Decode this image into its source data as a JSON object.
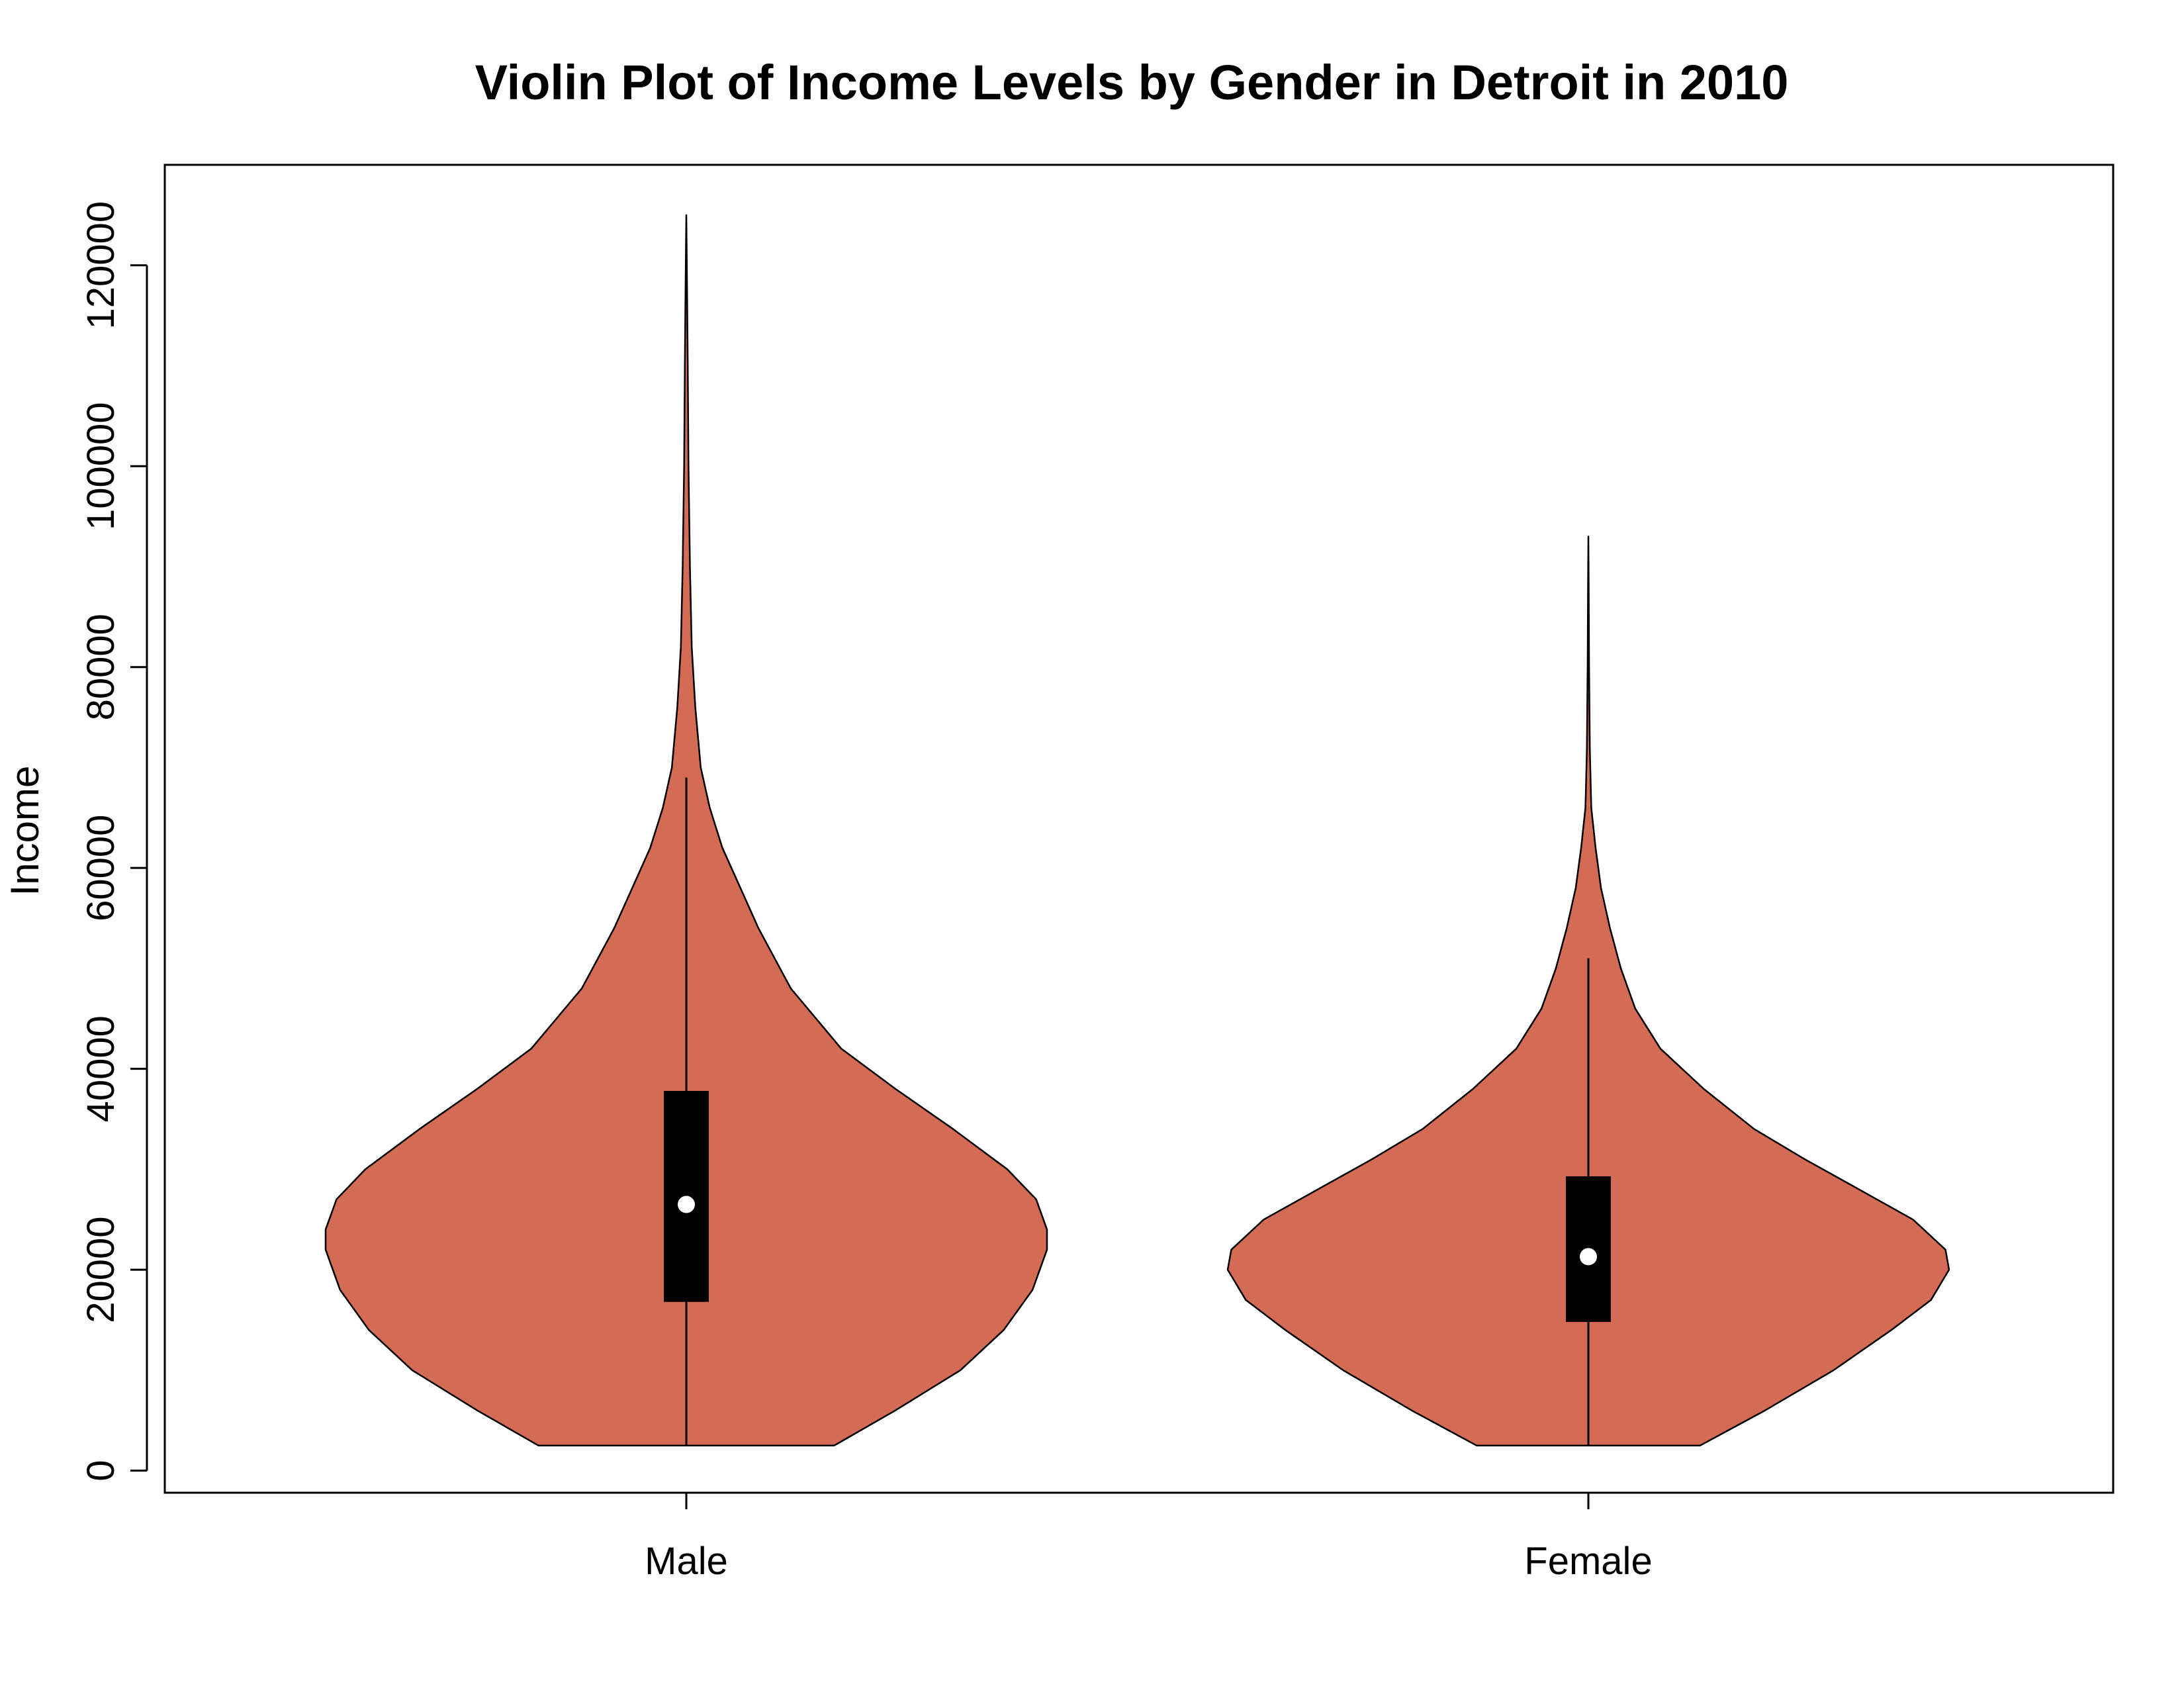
{
  "chart_data": {
    "type": "violin",
    "title": "Violin Plot of Income Levels by Gender in Detroit in 2010",
    "xlabel": "",
    "ylabel": "Income",
    "ylim": [
      -2200,
      130000
    ],
    "y_ticks": [
      0,
      20000,
      40000,
      60000,
      80000,
      100000,
      120000
    ],
    "y_tick_labels": [
      "0",
      "20000",
      "40000",
      "60000",
      "80000",
      "100000",
      "120000"
    ],
    "categories": [
      "Male",
      "Female"
    ],
    "fill_color": "#D36B55",
    "grid": false,
    "legend": "none",
    "violins": [
      {
        "name": "Male",
        "min": 2500,
        "q1": 16800,
        "median": 26500,
        "q3": 37800,
        "whisker_high": 69000,
        "max": 125000,
        "density_profile": [
          [
            2500,
            0.41
          ],
          [
            6000,
            0.58
          ],
          [
            10000,
            0.76
          ],
          [
            14000,
            0.88
          ],
          [
            18000,
            0.96
          ],
          [
            22000,
            1.0
          ],
          [
            24000,
            1.0
          ],
          [
            27000,
            0.97
          ],
          [
            30000,
            0.89
          ],
          [
            34000,
            0.74
          ],
          [
            38000,
            0.58
          ],
          [
            42000,
            0.43
          ],
          [
            48000,
            0.29
          ],
          [
            54000,
            0.2
          ],
          [
            58000,
            0.15
          ],
          [
            62000,
            0.1
          ],
          [
            66000,
            0.065
          ],
          [
            70000,
            0.04
          ],
          [
            76000,
            0.025
          ],
          [
            82000,
            0.015
          ],
          [
            90000,
            0.01
          ],
          [
            100000,
            0.006
          ],
          [
            110000,
            0.004
          ],
          [
            118000,
            0.002
          ],
          [
            125000,
            0.0
          ]
        ]
      },
      {
        "name": "Female",
        "min": 2500,
        "q1": 14800,
        "median": 21300,
        "q3": 29300,
        "whisker_high": 51000,
        "max": 93000,
        "density_profile": [
          [
            2500,
            0.31
          ],
          [
            6000,
            0.49
          ],
          [
            10000,
            0.68
          ],
          [
            14000,
            0.84
          ],
          [
            17000,
            0.95
          ],
          [
            20000,
            1.0
          ],
          [
            22000,
            0.99
          ],
          [
            25000,
            0.9
          ],
          [
            28000,
            0.75
          ],
          [
            31000,
            0.6
          ],
          [
            34000,
            0.46
          ],
          [
            38000,
            0.32
          ],
          [
            42000,
            0.2
          ],
          [
            46000,
            0.13
          ],
          [
            50000,
            0.09
          ],
          [
            54000,
            0.06
          ],
          [
            58000,
            0.035
          ],
          [
            62000,
            0.02
          ],
          [
            66000,
            0.008
          ],
          [
            72000,
            0.004
          ],
          [
            80000,
            0.002
          ],
          [
            88000,
            0.001
          ],
          [
            93000,
            0.0
          ]
        ]
      }
    ]
  }
}
